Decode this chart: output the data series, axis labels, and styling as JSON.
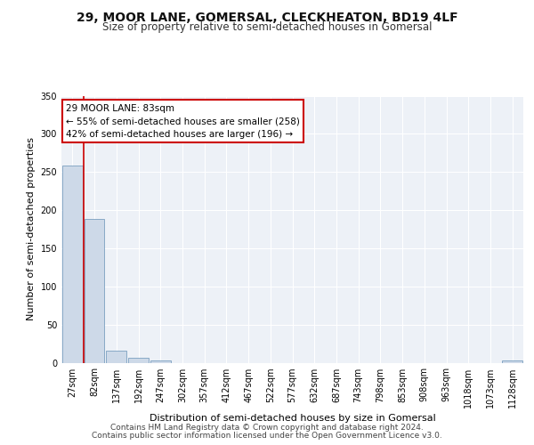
{
  "title1": "29, MOOR LANE, GOMERSAL, CLECKHEATON, BD19 4LF",
  "title2": "Size of property relative to semi-detached houses in Gomersal",
  "xlabel": "Distribution of semi-detached houses by size in Gomersal",
  "ylabel": "Number of semi-detached properties",
  "annotation_title": "29 MOOR LANE: 83sqm",
  "annotation_line1": "← 55% of semi-detached houses are smaller (258)",
  "annotation_line2": "42% of semi-detached houses are larger (196) →",
  "footer1": "Contains HM Land Registry data © Crown copyright and database right 2024.",
  "footer2": "Contains public sector information licensed under the Open Government Licence v3.0.",
  "bar_categories": [
    "27sqm",
    "82sqm",
    "137sqm",
    "192sqm",
    "247sqm",
    "302sqm",
    "357sqm",
    "412sqm",
    "467sqm",
    "522sqm",
    "577sqm",
    "632sqm",
    "687sqm",
    "743sqm",
    "798sqm",
    "853sqm",
    "908sqm",
    "963sqm",
    "1018sqm",
    "1073sqm",
    "1128sqm"
  ],
  "bar_values": [
    258,
    188,
    16,
    6,
    3,
    0,
    0,
    0,
    0,
    0,
    0,
    0,
    0,
    0,
    0,
    0,
    0,
    0,
    0,
    0,
    3
  ],
  "bar_color": "#cdd9e8",
  "bar_edge_color": "#7b9fc0",
  "ylim": [
    0,
    350
  ],
  "yticks": [
    0,
    50,
    100,
    150,
    200,
    250,
    300,
    350
  ],
  "background_color": "#edf1f7",
  "grid_color": "#ffffff",
  "annotation_box_color": "#ffffff",
  "annotation_box_edge": "#cc0000",
  "red_line_color": "#cc0000",
  "title1_fontsize": 10,
  "title2_fontsize": 8.5,
  "axis_label_fontsize": 8,
  "tick_fontsize": 7,
  "footer_fontsize": 6.5
}
